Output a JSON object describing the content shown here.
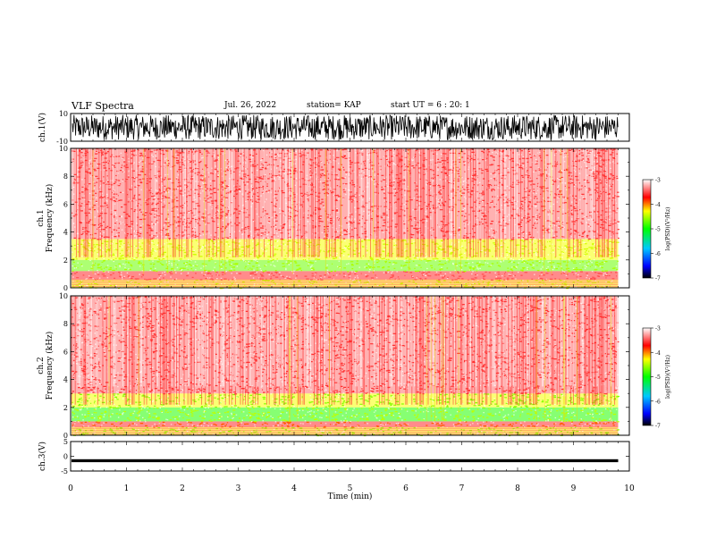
{
  "header": {
    "title": "VLF Spectra",
    "date": "Jul. 26, 2022",
    "station": "station= KAP",
    "start": "start  UT =  6 : 20: 1"
  },
  "colorbar": {
    "label": "log(PSD)(V²/Hz)",
    "ticks": [
      "-3",
      "-4",
      "-5",
      "-6",
      "-7"
    ],
    "colors": [
      "#000000",
      "#0000ff",
      "#00c8ff",
      "#00ff00",
      "#ffff00",
      "#ff0000",
      "#ffffff"
    ]
  },
  "chart_data": [
    {
      "type": "line",
      "panel": "ch1-waveform",
      "ylabel": "ch.1(V)",
      "ylim": [
        -10,
        10
      ],
      "yticks": [
        "10",
        "-10"
      ],
      "description_values": {
        "x_range_min": [
          0,
          9.8
        ],
        "amplitude_approx": [
          -9,
          9
        ]
      }
    },
    {
      "type": "heatmap",
      "panel": "ch1-spectrogram",
      "ylabel": "ch.1 Frequency (kHz)",
      "ylim": [
        0,
        10
      ],
      "yticks": [
        "0",
        "2",
        "4",
        "6",
        "8",
        "10"
      ],
      "xlim": [
        0,
        10
      ],
      "data_extent_min": [
        0,
        9.8
      ],
      "bands_khz": [
        {
          "range": [
            0.0,
            0.6
          ],
          "log_psd": -4.2
        },
        {
          "range": [
            0.6,
            1.2
          ],
          "log_psd": -3.6
        },
        {
          "range": [
            1.2,
            2.0
          ],
          "log_psd": -4.7
        },
        {
          "range": [
            2.0,
            3.5
          ],
          "log_psd": -4.3
        },
        {
          "range": [
            3.5,
            10.0
          ],
          "log_psd": -3.4
        }
      ]
    },
    {
      "type": "heatmap",
      "panel": "ch2-spectrogram",
      "ylabel": "ch.2 Frequency (kHz)",
      "ylim": [
        0,
        10
      ],
      "yticks": [
        "0",
        "2",
        "4",
        "6",
        "8",
        "10"
      ],
      "xlim": [
        0,
        10
      ],
      "data_extent_min": [
        0,
        9.8
      ],
      "bands_khz": [
        {
          "range": [
            0.0,
            0.6
          ],
          "log_psd": -4.2
        },
        {
          "range": [
            0.6,
            1.0
          ],
          "log_psd": -3.6
        },
        {
          "range": [
            1.0,
            2.0
          ],
          "log_psd": -4.9
        },
        {
          "range": [
            2.0,
            3.0
          ],
          "log_psd": -4.3
        },
        {
          "range": [
            3.0,
            10.0
          ],
          "log_psd": -3.4
        }
      ]
    },
    {
      "type": "line",
      "panel": "ch3-waveform",
      "ylabel": "ch.3(V)",
      "ylim": [
        -5,
        5
      ],
      "yticks": [
        "5",
        "0",
        "-5"
      ],
      "xlabel": "Time (min)",
      "xlim": [
        0,
        10
      ],
      "xticks": [
        "0",
        "1",
        "2",
        "3",
        "4",
        "5",
        "6",
        "7",
        "8",
        "9",
        "10"
      ],
      "baseline_v": -1.5,
      "band_v": [
        -2.0,
        -1.0
      ],
      "data_extent_min": [
        0,
        9.8
      ]
    }
  ]
}
